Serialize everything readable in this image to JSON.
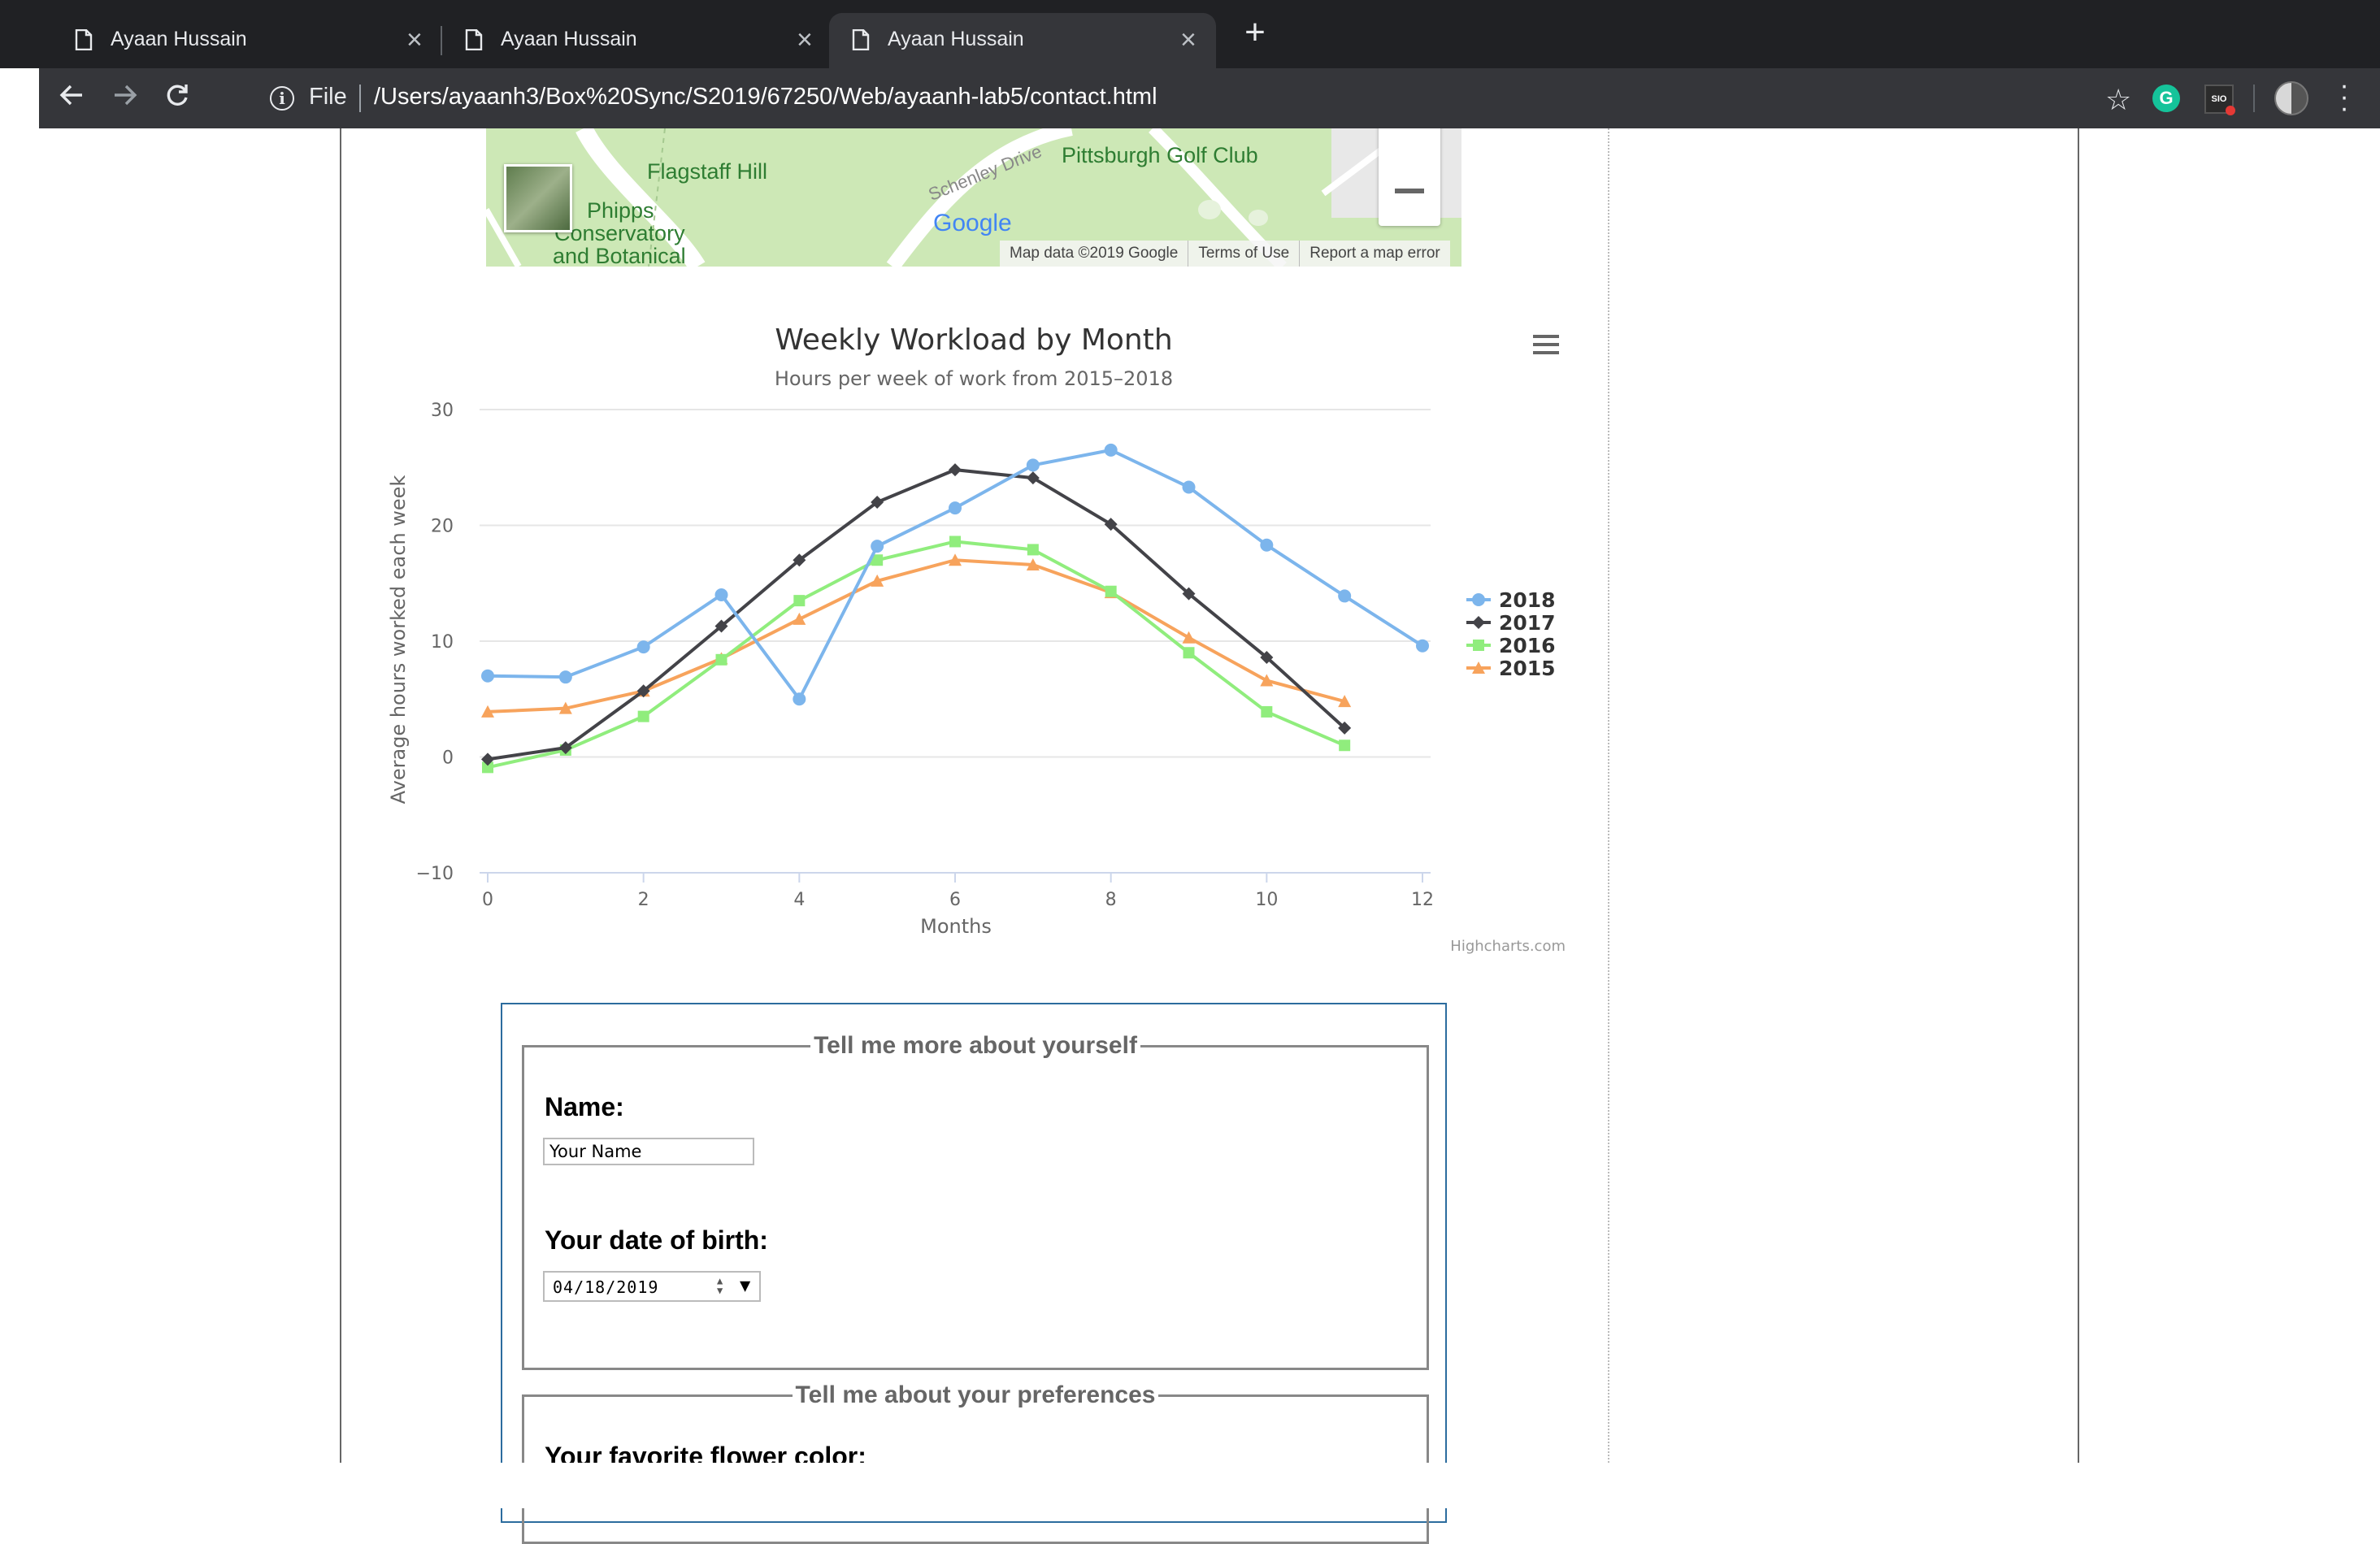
{
  "browser": {
    "tabs": [
      {
        "title": "Ayaan Hussain"
      },
      {
        "title": "Ayaan Hussain"
      },
      {
        "title": "Ayaan Hussain"
      }
    ],
    "new_tab": "+",
    "scheme_label": "File",
    "url": "/Users/ayaanh3/Box%20Sync/S2019/67250/Web/ayaanh-lab5/contact.html",
    "extensions": {
      "grammarly": "G",
      "sio": "SIO"
    }
  },
  "map": {
    "labels": {
      "flagstaff": "Flagstaff Hill",
      "golf": "Pittsburgh Golf Club",
      "schenley": "Schenley Drive",
      "phipps1": "Phipps",
      "phipps2": "Conservatory",
      "phipps3": "and Botanical"
    },
    "logo": "Google",
    "footer": {
      "data": "Map data ©2019 Google",
      "terms": "Terms of Use",
      "report": "Report a map error"
    }
  },
  "chart_data": {
    "type": "line",
    "title": "Weekly Workload by Month",
    "subtitle": "Hours per week of work from 2015–2018",
    "xlabel": "Months",
    "ylabel": "Average hours worked each week",
    "xlim": [
      0,
      12
    ],
    "ylim": [
      -10,
      30
    ],
    "xticks": [
      0,
      2,
      4,
      6,
      8,
      10,
      12
    ],
    "yticks": [
      -10,
      0,
      10,
      20,
      30
    ],
    "grid": true,
    "legend": "right",
    "credits": "Highcharts.com",
    "series": [
      {
        "name": "2018",
        "color": "#7cb5ec",
        "marker": "circle",
        "x": [
          0,
          1,
          2,
          3,
          4,
          5,
          6,
          7,
          8,
          9,
          10,
          11,
          12
        ],
        "y": [
          7.0,
          6.9,
          9.5,
          14.0,
          5.0,
          18.2,
          21.5,
          25.2,
          26.5,
          23.3,
          18.3,
          13.9,
          9.6
        ]
      },
      {
        "name": "2017",
        "color": "#434348",
        "marker": "diamond",
        "x": [
          0,
          1,
          2,
          3,
          4,
          5,
          6,
          7,
          8,
          9,
          10,
          11
        ],
        "y": [
          -0.2,
          0.8,
          5.7,
          11.3,
          17.0,
          22.0,
          24.8,
          24.1,
          20.1,
          14.1,
          8.6,
          2.5
        ]
      },
      {
        "name": "2016",
        "color": "#90ed7d",
        "marker": "square",
        "x": [
          0,
          1,
          2,
          3,
          4,
          5,
          6,
          7,
          8,
          9,
          10,
          11
        ],
        "y": [
          -0.9,
          0.6,
          3.5,
          8.4,
          13.5,
          17.0,
          18.6,
          17.9,
          14.3,
          9.0,
          3.9,
          1.0
        ]
      },
      {
        "name": "2015",
        "color": "#f7a35c",
        "marker": "triangle",
        "x": [
          0,
          1,
          2,
          3,
          4,
          5,
          6,
          7,
          8,
          9,
          10,
          11
        ],
        "y": [
          3.9,
          4.2,
          5.7,
          8.5,
          11.9,
          15.2,
          17.0,
          16.6,
          14.2,
          10.3,
          6.6,
          4.8
        ]
      }
    ]
  },
  "form": {
    "about_legend": "Tell me more about yourself",
    "name_label": "Name:",
    "name_value": "Your Name",
    "dob_label": "Your date of birth:",
    "dob_value": "04/18/2019",
    "prefs_legend": "Tell me about your preferences",
    "flower_label": "Your favorite flower color:"
  }
}
